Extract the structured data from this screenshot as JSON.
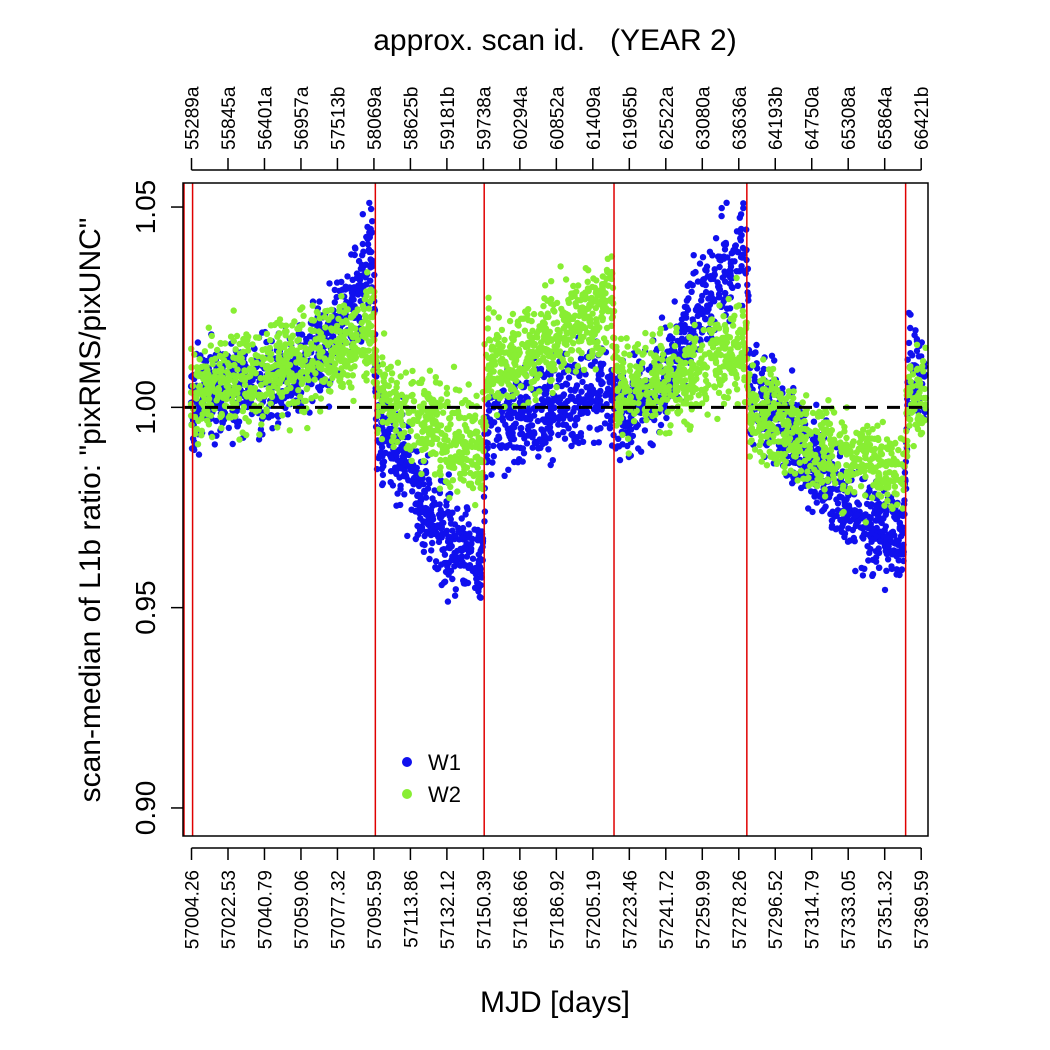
{
  "chart_data": {
    "type": "scatter",
    "title": "approx. scan id.   (YEAR 2)",
    "xlabel": "MJD [days]",
    "ylabel": "scan-median of L1b ratio: \"pixRMS/pixUNC\"",
    "xlim": [
      57000.0,
      57373.0
    ],
    "ylim": [
      0.893,
      1.056
    ],
    "y_ticks": [
      "0.90",
      "0.95",
      "1.00",
      "1.05"
    ],
    "y_tick_values": [
      0.9,
      0.95,
      1.0,
      1.05
    ],
    "x_tick_labels": [
      "57004.26",
      "57022.53",
      "57040.79",
      "57059.06",
      "57077.32",
      "57095.59",
      "57113.86",
      "57132.12",
      "57150.39",
      "57168.66",
      "57186.92",
      "57205.19",
      "57223.46",
      "57241.72",
      "57259.99",
      "57278.26",
      "57296.52",
      "57314.79",
      "57333.05",
      "57351.32",
      "57369.59"
    ],
    "top_tick_labels": [
      "55289a",
      "55845a",
      "56401a",
      "56957a",
      "57513b",
      "58069a",
      "58625b",
      "59181b",
      "59738a",
      "60294a",
      "60852a",
      "61409a",
      "61965b",
      "62522a",
      "63080a",
      "63636a",
      "64193b",
      "64750a",
      "65308a",
      "65864a",
      "66421b"
    ],
    "reference_line": {
      "y": 1.0,
      "style": "dashed",
      "color": "#000000"
    },
    "vertical_lines": {
      "color": "#e00000",
      "x": [
        57000.5,
        57004.8,
        57096.3,
        57150.8,
        57215.8,
        57282.3,
        57361.8
      ]
    },
    "legend": {
      "placement": "bottom-center"
    },
    "series": [
      {
        "name": "W1",
        "color": "#1010ee",
        "trend": [
          {
            "x": 57004,
            "y": 1.002
          },
          {
            "x": 57020,
            "y": 1.004
          },
          {
            "x": 57040,
            "y": 1.006
          },
          {
            "x": 57060,
            "y": 1.008
          },
          {
            "x": 57080,
            "y": 1.02
          },
          {
            "x": 57095,
            "y": 1.04
          },
          {
            "x": 57097,
            "y": 0.998
          },
          {
            "x": 57110,
            "y": 0.985
          },
          {
            "x": 57130,
            "y": 0.968
          },
          {
            "x": 57150,
            "y": 0.963
          },
          {
            "x": 57152,
            "y": 0.995
          },
          {
            "x": 57175,
            "y": 0.998
          },
          {
            "x": 57200,
            "y": 1.003
          },
          {
            "x": 57215,
            "y": 1.004
          },
          {
            "x": 57217,
            "y": 0.998
          },
          {
            "x": 57240,
            "y": 1.006
          },
          {
            "x": 57260,
            "y": 1.025
          },
          {
            "x": 57282,
            "y": 1.042
          },
          {
            "x": 57284,
            "y": 1.005
          },
          {
            "x": 57310,
            "y": 0.99
          },
          {
            "x": 57340,
            "y": 0.972
          },
          {
            "x": 57361,
            "y": 0.968
          },
          {
            "x": 57363,
            "y": 1.01
          },
          {
            "x": 57372,
            "y": 1.005
          }
        ]
      },
      {
        "name": "W2",
        "color": "#88ee33",
        "trend": [
          {
            "x": 57004,
            "y": 1.004
          },
          {
            "x": 57020,
            "y": 1.006
          },
          {
            "x": 57040,
            "y": 1.008
          },
          {
            "x": 57060,
            "y": 1.011
          },
          {
            "x": 57080,
            "y": 1.015
          },
          {
            "x": 57095,
            "y": 1.02
          },
          {
            "x": 57097,
            "y": 1.005
          },
          {
            "x": 57110,
            "y": 1.0
          },
          {
            "x": 57130,
            "y": 0.993
          },
          {
            "x": 57150,
            "y": 0.99
          },
          {
            "x": 57152,
            "y": 1.01
          },
          {
            "x": 57175,
            "y": 1.015
          },
          {
            "x": 57200,
            "y": 1.022
          },
          {
            "x": 57215,
            "y": 1.028
          },
          {
            "x": 57217,
            "y": 1.004
          },
          {
            "x": 57240,
            "y": 1.006
          },
          {
            "x": 57260,
            "y": 1.01
          },
          {
            "x": 57282,
            "y": 1.015
          },
          {
            "x": 57284,
            "y": 1.0
          },
          {
            "x": 57310,
            "y": 0.992
          },
          {
            "x": 57340,
            "y": 0.986
          },
          {
            "x": 57361,
            "y": 0.983
          },
          {
            "x": 57363,
            "y": 1.002
          },
          {
            "x": 57372,
            "y": 1.002
          }
        ]
      }
    ]
  }
}
